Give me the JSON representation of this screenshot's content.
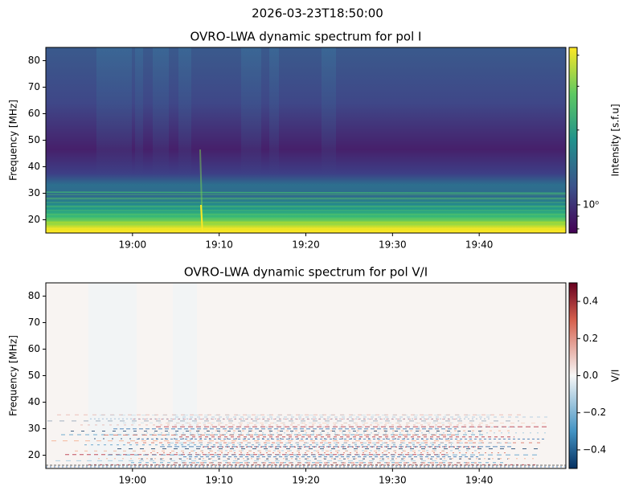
{
  "title": "2026-03-23T18:50:00",
  "chart_data": [
    {
      "type": "heatmap",
      "title": "OVRO-LWA dynamic spectrum for pol I",
      "ylabel": "Frequency [MHz]",
      "xlim": [
        1130,
        1190
      ],
      "xticks": [
        {
          "value": 1140,
          "label": "19:00"
        },
        {
          "value": 1150,
          "label": "19:10"
        },
        {
          "value": 1160,
          "label": "19:20"
        },
        {
          "value": 1170,
          "label": "19:30"
        },
        {
          "value": 1180,
          "label": "19:40"
        }
      ],
      "ylim": [
        15,
        85
      ],
      "yticks": [
        20,
        30,
        40,
        50,
        60,
        70,
        80
      ],
      "colorbar": {
        "label": "Intensity [s.f.u]",
        "colormap": "viridis",
        "scale": "log",
        "lim": [
          0.77,
          4.3
        ],
        "ticks": [
          {
            "value": 1,
            "label": "10⁰"
          }
        ],
        "minor_ticks": [
          0.8,
          0.9,
          2,
          3,
          4
        ]
      }
    },
    {
      "type": "heatmap",
      "title": "OVRO-LWA dynamic spectrum for pol V/I",
      "ylabel": "Frequency [MHz]",
      "xlim": [
        1130,
        1190
      ],
      "xticks": [
        {
          "value": 1140,
          "label": "19:00"
        },
        {
          "value": 1150,
          "label": "19:10"
        },
        {
          "value": 1160,
          "label": "19:20"
        },
        {
          "value": 1170,
          "label": "19:30"
        },
        {
          "value": 1180,
          "label": "19:40"
        }
      ],
      "ylim": [
        15,
        85
      ],
      "yticks": [
        20,
        30,
        40,
        50,
        60,
        70,
        80
      ],
      "colorbar": {
        "label": "V/I",
        "colormap": "RdBu_r",
        "scale": "linear",
        "lim": [
          -0.5,
          0.5
        ],
        "ticks": [
          {
            "value": -0.4,
            "label": "−0.4"
          },
          {
            "value": -0.2,
            "label": "−0.2"
          },
          {
            "value": 0,
            "label": "0.0"
          },
          0.2,
          0.4
        ]
      }
    }
  ]
}
